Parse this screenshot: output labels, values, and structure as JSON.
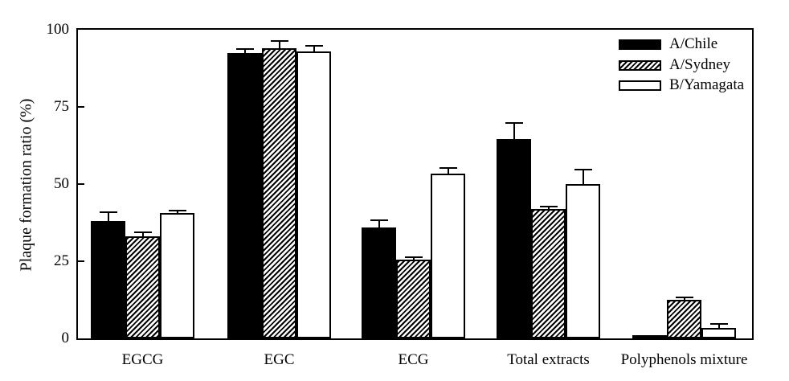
{
  "chart_data": {
    "type": "bar",
    "title": "",
    "xlabel": "",
    "ylabel": "Plaque formation ratio (%)",
    "ylim": [
      0,
      100
    ],
    "yticks": [
      0,
      25,
      50,
      75,
      100
    ],
    "grid": false,
    "legend_position": "top-right",
    "frame": "full-box",
    "error_bars": "upper-only",
    "categories": [
      "EGCG",
      "EGC",
      "ECG",
      "Total extracts",
      "Polyphenols mixture"
    ],
    "series": [
      {
        "name": "A/Chile",
        "pattern": "black",
        "values": [
          38,
          92.5,
          36,
          64.5,
          0.5
        ],
        "errors": [
          3,
          1.5,
          2.5,
          5.5,
          0
        ]
      },
      {
        "name": "A/Sydney",
        "pattern": "hatched",
        "values": [
          33,
          94,
          25.5,
          42,
          12.5
        ],
        "errors": [
          1.5,
          2.5,
          1,
          1,
          1
        ]
      },
      {
        "name": "B/Yamagata",
        "pattern": "white",
        "values": [
          40.5,
          93,
          53.5,
          50,
          3.5
        ],
        "errors": [
          1,
          2,
          2,
          5,
          1.5
        ]
      }
    ],
    "colors": {
      "bar_fill_solid": "#000000",
      "bar_outline": "#000000",
      "axis": "#000000",
      "background": "#ffffff"
    }
  }
}
